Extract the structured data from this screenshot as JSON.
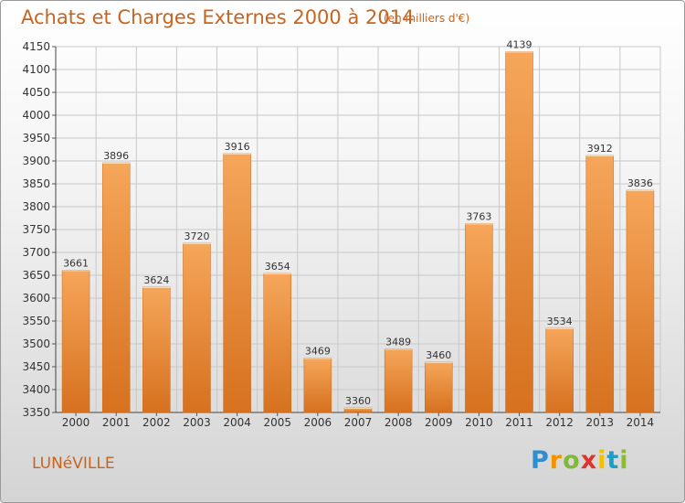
{
  "header": {
    "title": "Achats et Charges Externes 2000 à 2014",
    "unit": "(en milliers d'€)"
  },
  "footer": {
    "city": "LUNéVILLE",
    "logo": [
      "P",
      "r",
      "o",
      "x",
      "i",
      "t",
      "i"
    ]
  },
  "colors": {
    "bar_light": "#f6a65a",
    "bar_dark": "#d6711f",
    "title": "#c8641e",
    "grid": "#c8c8c8"
  },
  "chart_data": {
    "type": "bar",
    "title": "Achats et Charges Externes 2000 à 2014",
    "categories": [
      "2000",
      "2001",
      "2002",
      "2003",
      "2004",
      "2005",
      "2006",
      "2007",
      "2008",
      "2009",
      "2010",
      "2011",
      "2012",
      "2013",
      "2014"
    ],
    "values": [
      3661,
      3896,
      3624,
      3720,
      3916,
      3654,
      3469,
      3360,
      3489,
      3460,
      3763,
      4139,
      3534,
      3912,
      3836
    ],
    "yticks": [
      3350,
      3400,
      3450,
      3500,
      3550,
      3600,
      3650,
      3700,
      3750,
      3800,
      3850,
      3900,
      3950,
      4000,
      4050,
      4100,
      4150
    ],
    "ylim": [
      3350,
      4150
    ],
    "xlabel": "",
    "ylabel": "",
    "grid": true,
    "legend": "none"
  }
}
